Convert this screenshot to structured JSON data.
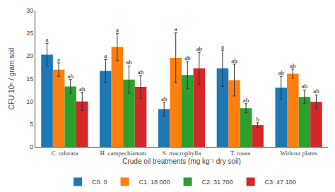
{
  "chart_data": {
    "type": "bar",
    "xlabel": "Crude oil treatments (mg kg⁻¹ dry soil)",
    "ylabel": "CFU 10⁵ / gram soil",
    "categories": [
      "C. odorata",
      "H. campechianum",
      "S. macrophylla",
      "T. rosea",
      "Without plants"
    ],
    "series": [
      {
        "name": "C0: 0",
        "values": [
          20.3,
          16.7,
          8.3,
          17.3,
          13.0
        ],
        "errors": [
          2.5,
          2.5,
          1.5,
          4.0,
          2.5
        ],
        "annotations": [
          "a",
          "a",
          "ab",
          "a",
          "ab"
        ]
      },
      {
        "name": "C1: 18 000",
        "values": [
          17.0,
          22.0,
          19.6,
          14.7,
          16.1
        ],
        "errors": [
          1.5,
          3.0,
          5.5,
          3.5,
          1.0
        ],
        "annotations": [
          "a",
          "a",
          "a",
          "ab",
          "ab"
        ]
      },
      {
        "name": "C2: 31 700",
        "values": [
          13.3,
          14.8,
          15.8,
          8.5,
          11.0
        ],
        "errors": [
          1.5,
          3.0,
          3.0,
          1.0,
          1.5
        ],
        "annotations": [
          "ab",
          "ab",
          "ab",
          "ab",
          "ab"
        ]
      },
      {
        "name": "C3: 47 100",
        "values": [
          10.0,
          13.2,
          17.3,
          4.8,
          9.9
        ],
        "errors": [
          2.0,
          2.5,
          3.5,
          0.5,
          1.5
        ],
        "annotations": [
          "ab",
          "ab",
          "ab",
          "b",
          "ab"
        ]
      }
    ],
    "ylim": [
      0,
      30
    ],
    "yticks": [
      0,
      5,
      10,
      15,
      20,
      25,
      30
    ],
    "grid": false,
    "legend": "bottom"
  }
}
